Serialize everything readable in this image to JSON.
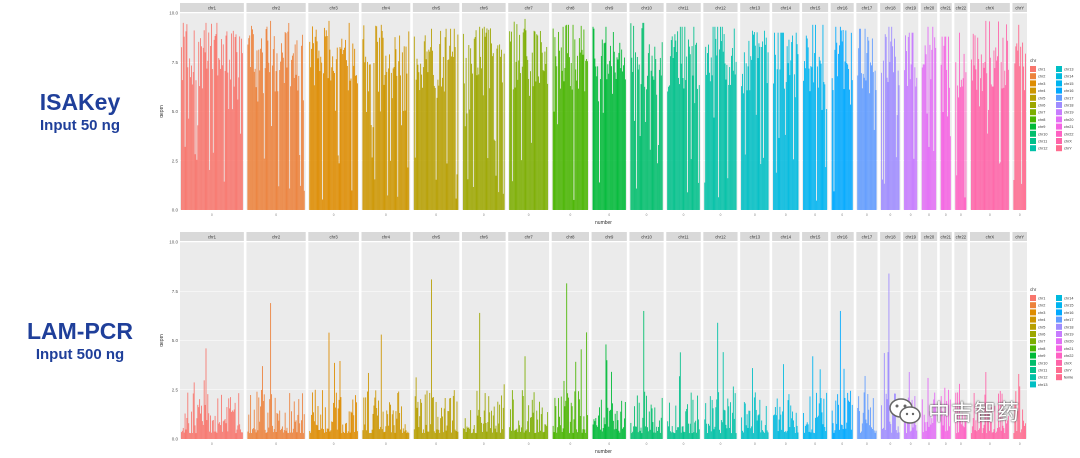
{
  "left_labels": [
    {
      "title": "ISAKey",
      "subtitle": "Input 50 ng"
    },
    {
      "title": "LAM-PCR",
      "subtitle": "Input 500 ng"
    }
  ],
  "watermark": {
    "text": "中吉智药",
    "icon": "wechat-icon"
  },
  "chart_data": [
    {
      "type": "bar",
      "facet": "chromosome",
      "ylabel": "depth",
      "xlabel": "number",
      "ylim": [
        0,
        10
      ],
      "y_ticks": [
        "0.0",
        "2.5",
        "5.0",
        "7.5",
        "10.0"
      ],
      "legend_title": "chr",
      "legend_position": "right",
      "chromosomes": [
        "chr1",
        "chr2",
        "chr3",
        "chr4",
        "chr5",
        "chr6",
        "chr7",
        "chr8",
        "chr9",
        "chr10",
        "chr11",
        "chr12",
        "chr13",
        "chr14",
        "chr15",
        "chr16",
        "chr17",
        "chr18",
        "chr19",
        "chr20",
        "chr21",
        "chr22",
        "chrX",
        "chrY"
      ],
      "legend_entries": [
        "chr1",
        "chr2",
        "chr3",
        "chr4",
        "chr5",
        "chr6",
        "chr7",
        "chr8",
        "chr9",
        "chr10",
        "chr11",
        "chr12",
        "chr13",
        "chr14",
        "chr15",
        "chr16",
        "chr17",
        "chr18",
        "chr19",
        "chr20",
        "chr21",
        "chr22",
        "chrX",
        "chrY"
      ],
      "colors": [
        "#F8766D",
        "#EC823C",
        "#DE8C00",
        "#CD9600",
        "#B79F00",
        "#9DA700",
        "#7CAE00",
        "#49B500",
        "#00BA38",
        "#00BE6C",
        "#00C08B",
        "#00C1A7",
        "#00BFC4",
        "#00BADE",
        "#00B4F0",
        "#00A9FF",
        "#619CFF",
        "#9F8CFF",
        "#C77CFF",
        "#E36EF6",
        "#F564E3",
        "#FF61C3",
        "#FF64A8",
        "#FF6C90"
      ],
      "panel_widths": [
        250,
        232,
        198,
        191,
        182,
        171,
        160,
        146,
        138,
        134,
        135,
        134,
        115,
        107,
        102,
        90,
        83,
        80,
        59,
        64,
        47,
        51,
        156,
        57
      ],
      "max_depth_per_chr": [
        9.5,
        9.6,
        9.6,
        9.4,
        9.2,
        9.3,
        9.7,
        9.4,
        9.3,
        9.5,
        9.3,
        9.3,
        9.1,
        9.0,
        9.4,
        9.3,
        9.2,
        9.3,
        9.0,
        9.3,
        8.8,
        9.0,
        9.6,
        9.4
      ],
      "typical_depth": "high"
    },
    {
      "type": "bar",
      "facet": "chromosome",
      "ylabel": "depth",
      "xlabel": "number",
      "ylim": [
        0,
        10
      ],
      "y_ticks": [
        "0.0",
        "2.5",
        "5.0",
        "7.5",
        "10.0"
      ],
      "legend_title": "chr",
      "legend_position": "right",
      "chromosomes": [
        "chr1",
        "chr2",
        "chr3",
        "chr4",
        "chr5",
        "chr6",
        "chr7",
        "chr8",
        "chr9",
        "chr10",
        "chr11",
        "chr12",
        "chr13",
        "chr14",
        "chr15",
        "chr16",
        "chr17",
        "chr18",
        "chr19",
        "chr20",
        "chr21",
        "chr22",
        "chrX",
        "chrY"
      ],
      "legend_entries": [
        "chr1",
        "chr2",
        "chr3",
        "chr4",
        "chr5",
        "chr6",
        "chr7",
        "chr8",
        "chr9",
        "chr10",
        "chr11",
        "chr12",
        "chr13",
        "chr14",
        "chr15",
        "chr16",
        "chr17",
        "chr18",
        "chr19",
        "chr20",
        "chr21",
        "chr22",
        "chrX",
        "chrY",
        "femle"
      ],
      "colors": [
        "#F8766D",
        "#EC823C",
        "#DE8C00",
        "#CD9600",
        "#B79F00",
        "#9DA700",
        "#7CAE00",
        "#49B500",
        "#00BA38",
        "#00BE6C",
        "#00C08B",
        "#00C1A7",
        "#00BFC4",
        "#00BADE",
        "#00B4F0",
        "#00A9FF",
        "#619CFF",
        "#9F8CFF",
        "#C77CFF",
        "#E36EF6",
        "#F564E3",
        "#FF61C3",
        "#FF64A8",
        "#FF6C90"
      ],
      "panel_widths": [
        250,
        232,
        198,
        191,
        182,
        171,
        160,
        146,
        138,
        134,
        135,
        134,
        115,
        107,
        102,
        90,
        83,
        80,
        59,
        64,
        47,
        51,
        156,
        57
      ],
      "max_depth_per_chr": [
        4.6,
        6.9,
        5.4,
        5.3,
        8.1,
        6.4,
        4.2,
        7.9,
        4.8,
        6.5,
        4.4,
        5.9,
        3.6,
        3.8,
        4.2,
        6.5,
        3.2,
        8.4,
        3.4,
        3.1,
        2.6,
        2.8,
        3.4,
        3.3
      ],
      "typical_depth": "low"
    }
  ]
}
